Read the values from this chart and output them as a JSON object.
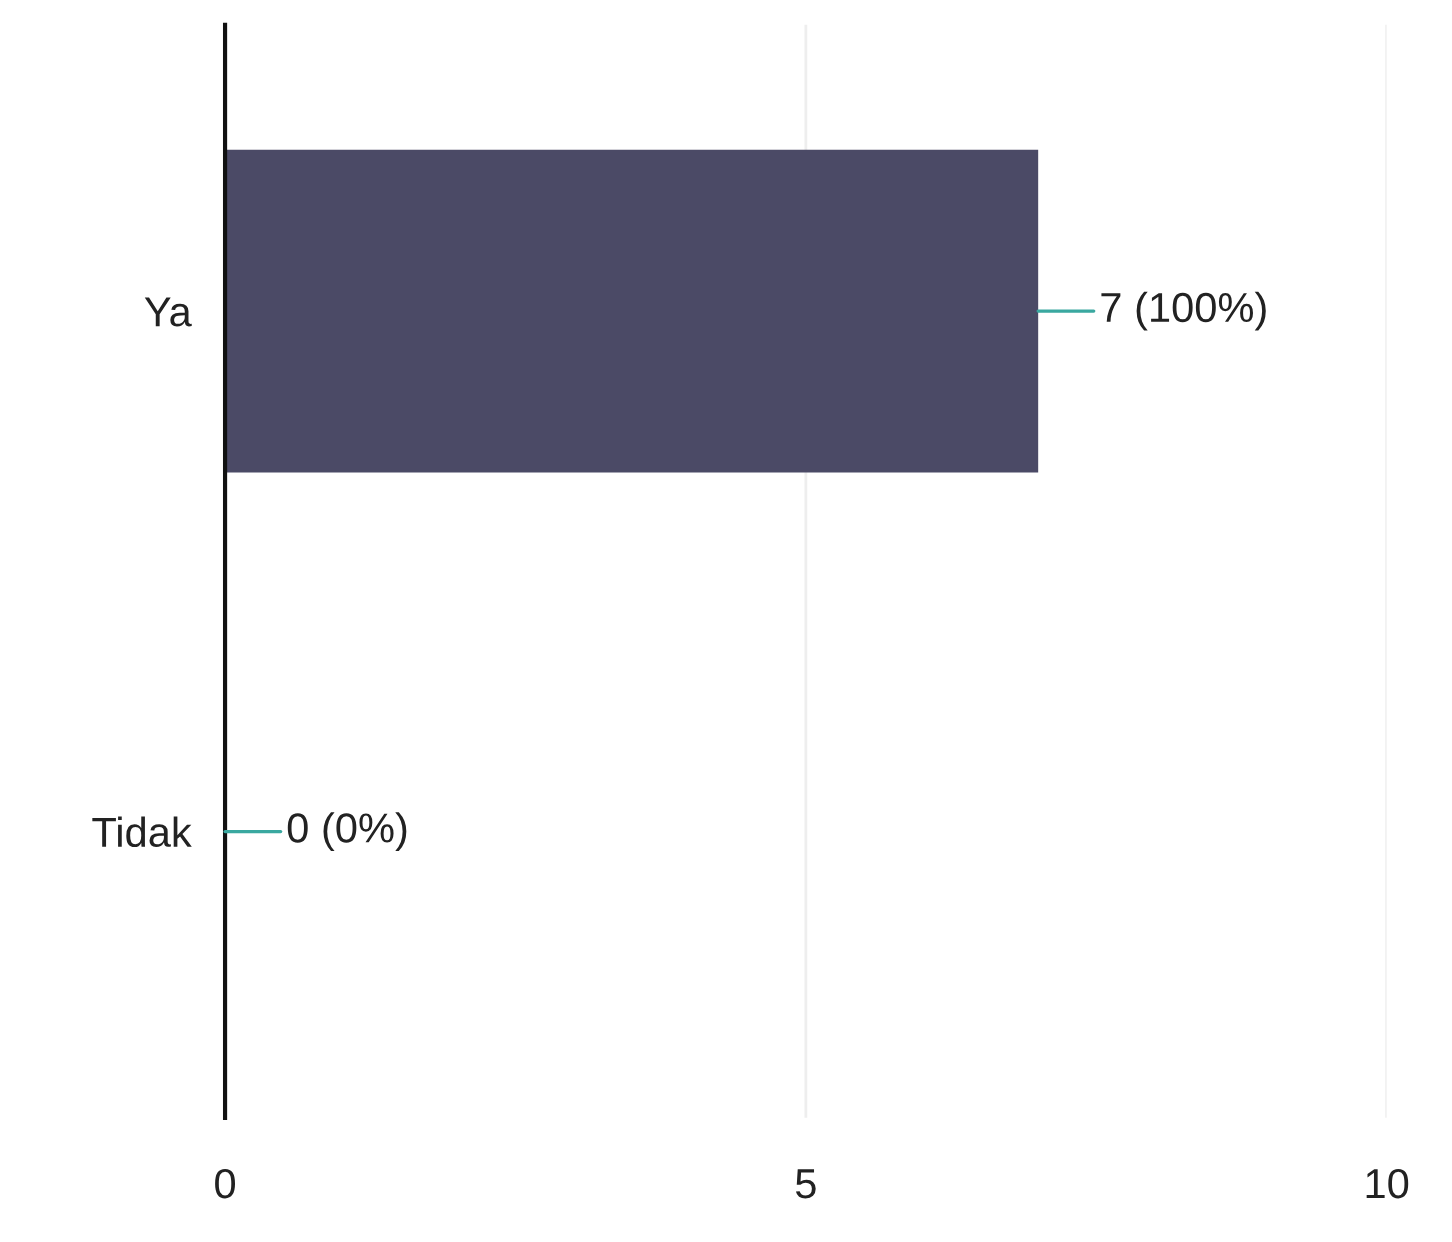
{
  "chart_data": {
    "type": "bar",
    "orientation": "horizontal",
    "categories": [
      "Ya",
      "Tidak"
    ],
    "values": [
      7,
      0
    ],
    "color": "#4b4a66",
    "value_labels": [
      "7 (100%)",
      "0 (0%)"
    ],
    "xlim": [
      0,
      10
    ],
    "xticks": [
      0,
      5,
      10
    ],
    "grid": "x"
  }
}
